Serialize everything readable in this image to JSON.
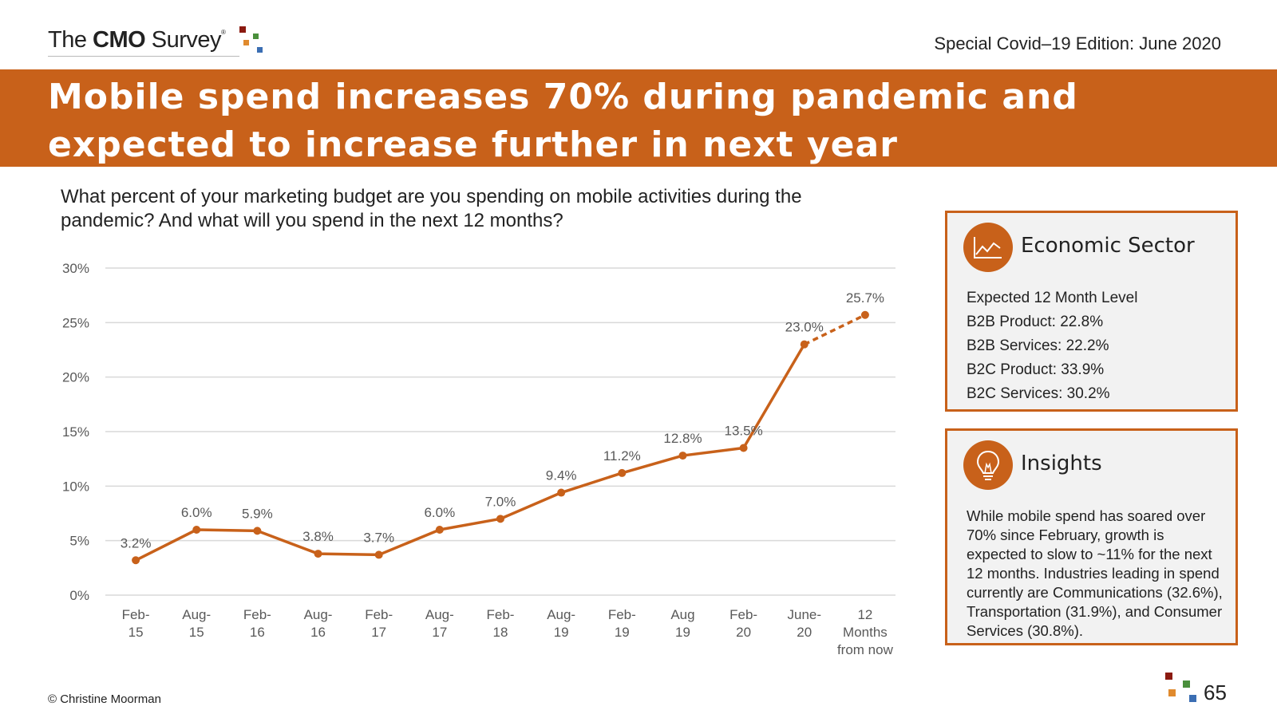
{
  "header": {
    "logo": {
      "prefix": "The",
      "bold": "CMO",
      "suffix": "Survey",
      "mark": "®"
    },
    "edition": "Special Covid–19 Edition: June 2020"
  },
  "banner": {
    "title": "Mobile spend increases 70% during pandemic and expected to increase further in next year"
  },
  "question": "What percent of your marketing budget are you spending on mobile activities during the pandemic? And what will you spend in the next 12 months?",
  "chart_data": {
    "type": "line",
    "title": "",
    "xlabel": "",
    "ylabel": "",
    "ylim": [
      0,
      30
    ],
    "yticks": [
      0,
      5,
      10,
      15,
      20,
      25,
      30
    ],
    "ytick_labels": [
      "0%",
      "5%",
      "10%",
      "15%",
      "20%",
      "25%",
      "30%"
    ],
    "categories": [
      [
        "Feb-",
        "15"
      ],
      [
        "Aug-",
        "15"
      ],
      [
        "Feb-",
        "16"
      ],
      [
        "Aug-",
        "16"
      ],
      [
        "Feb-",
        "17"
      ],
      [
        "Aug-",
        "17"
      ],
      [
        "Feb-",
        "18"
      ],
      [
        "Aug-",
        "19"
      ],
      [
        "Feb-",
        "19"
      ],
      [
        "Aug",
        "19"
      ],
      [
        "Feb-",
        "20"
      ],
      [
        "June-",
        "20"
      ],
      [
        "12",
        "Months",
        "from now"
      ]
    ],
    "series": [
      {
        "name": "Mobile spend",
        "values": [
          3.2,
          6.0,
          5.9,
          3.8,
          3.7,
          6.0,
          7.0,
          9.4,
          11.2,
          12.8,
          13.5,
          23.0,
          25.7
        ],
        "labels": [
          "3.2%",
          "6.0%",
          "5.9%",
          "3.8%",
          "3.7%",
          "6.0%",
          "7.0%",
          "9.4%",
          "11.2%",
          "12.8%",
          "13.5%",
          "23.0%",
          "25.7%"
        ],
        "projected_last": true
      }
    ],
    "grid": true,
    "color": "#c8611a"
  },
  "econ_panel": {
    "title": "Economic Sector",
    "icon": "line-chart-icon",
    "lines": [
      "Expected 12 Month Level",
      "B2B Product: 22.8%",
      "B2B Services: 22.2%",
      "B2C Product: 33.9%",
      "B2C Services: 30.2%"
    ]
  },
  "insights_panel": {
    "title": "Insights",
    "icon": "lightbulb-icon",
    "text": "While mobile spend has soared over 70% since February, growth is expected to slow to ~11% for the next 12 months. Industries leading in spend currently are Communications (32.6%), Transportation (31.9%), and Consumer Services (30.8%)."
  },
  "footer": {
    "copyright": "© Christine Moorman",
    "page": "65"
  },
  "colors": {
    "accent": "#c8611a",
    "logo_red": "#8b1a10",
    "logo_green": "#4a8f3c",
    "logo_orange": "#e08a2e",
    "logo_blue": "#3b6eb3"
  }
}
